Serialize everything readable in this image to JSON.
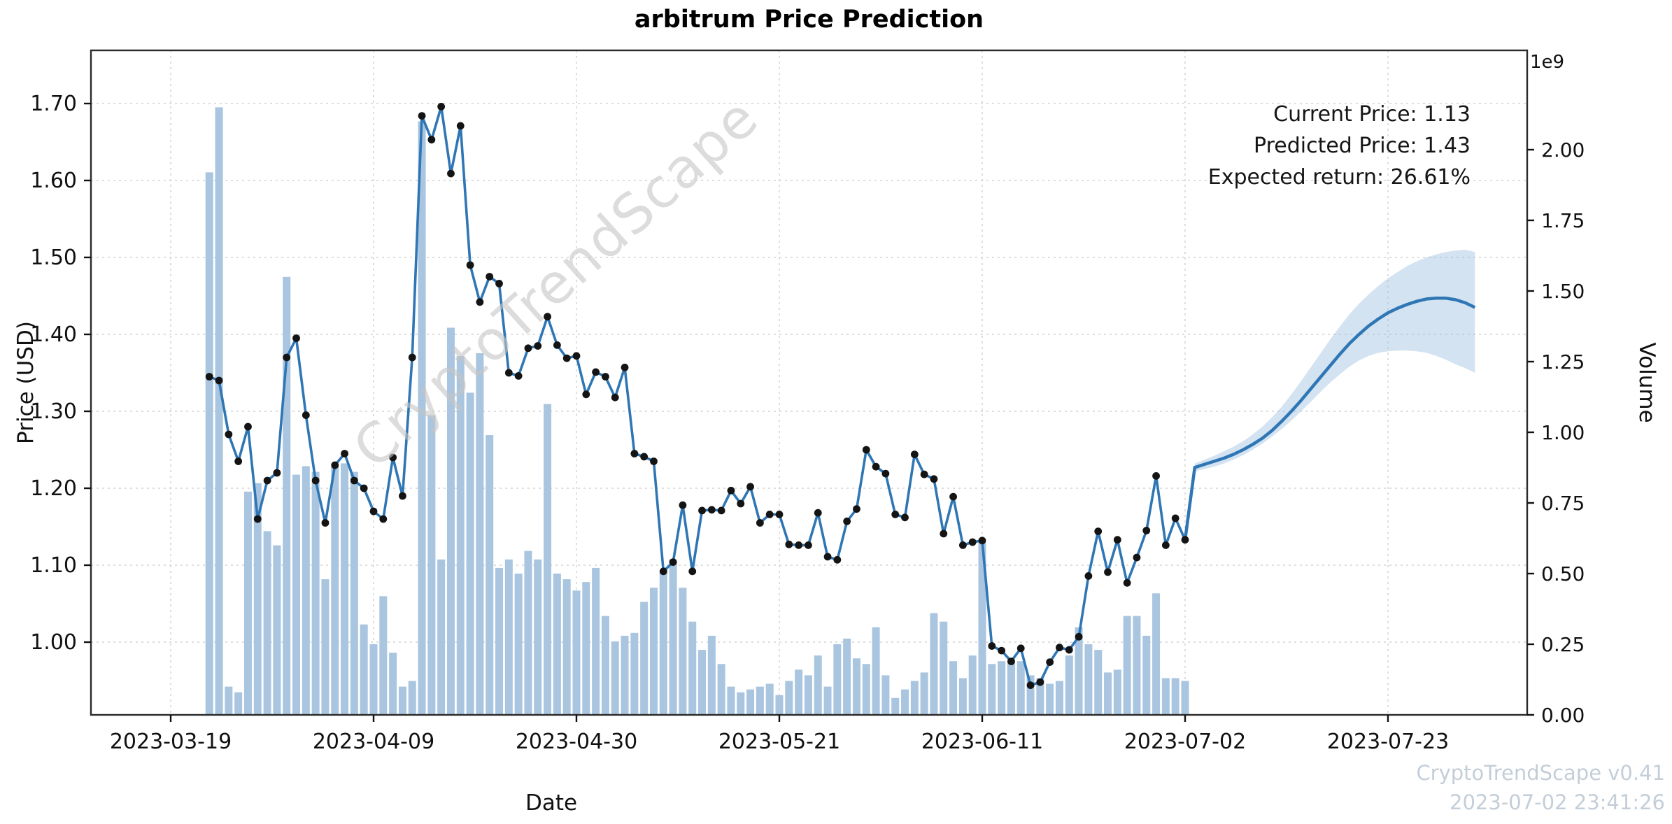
{
  "title": "arbitrum Price Prediction",
  "axes": {
    "x_label": "Date",
    "y_left_label": "Price (USD)",
    "y_right_label": "Volume",
    "volume_exponent_label": "1e9"
  },
  "annotation": {
    "current": "Current Price: 1.13",
    "predicted": "Predicted Price: 1.43",
    "expected": "Expected return: 26.61%"
  },
  "watermark": "CryptoTrendScape",
  "credits": {
    "line1": "CryptoTrendScape v0.41",
    "line2": "2023-07-02 23:41:26"
  },
  "colors": {
    "line": "#2f76b5",
    "marker": "#141414",
    "volume_bar": "#a9c5df",
    "band_fill": "#9dc2e0",
    "grid": "#c9c9c9",
    "frame": "#2a2a2a",
    "credits_text": "#c4ced8",
    "watermark_text": "#c6c6c6"
  },
  "chart_data": {
    "type": "line+bar+band",
    "title": "arbitrum Price Prediction",
    "xlabel": "Date",
    "ylabel_left": "Price (USD)",
    "ylabel_right": "Volume",
    "grid": true,
    "legend_position": "none",
    "x_ticks": [
      "2023-03-19",
      "2023-04-09",
      "2023-04-30",
      "2023-05-21",
      "2023-06-11",
      "2023-07-02",
      "2023-07-23"
    ],
    "price_ticks": [
      "1.00",
      "1.10",
      "1.20",
      "1.30",
      "1.40",
      "1.50",
      "1.60",
      "1.70"
    ],
    "volume_ticks": [
      "0.00",
      "0.25",
      "0.50",
      "0.75",
      "1.00",
      "1.25",
      "1.50",
      "1.75",
      "2.00"
    ],
    "price_ylim": [
      0.905,
      1.77
    ],
    "volume_ylim_e9": [
      0,
      2.35
    ],
    "history": {
      "dates": [
        "2023-03-23",
        "2023-03-24",
        "2023-03-25",
        "2023-03-26",
        "2023-03-27",
        "2023-03-28",
        "2023-03-29",
        "2023-03-30",
        "2023-03-31",
        "2023-04-01",
        "2023-04-02",
        "2023-04-03",
        "2023-04-04",
        "2023-04-05",
        "2023-04-06",
        "2023-04-07",
        "2023-04-08",
        "2023-04-09",
        "2023-04-10",
        "2023-04-11",
        "2023-04-12",
        "2023-04-13",
        "2023-04-14",
        "2023-04-15",
        "2023-04-16",
        "2023-04-17",
        "2023-04-18",
        "2023-04-19",
        "2023-04-20",
        "2023-04-21",
        "2023-04-22",
        "2023-04-23",
        "2023-04-24",
        "2023-04-25",
        "2023-04-26",
        "2023-04-27",
        "2023-04-28",
        "2023-04-29",
        "2023-04-30",
        "2023-05-01",
        "2023-05-02",
        "2023-05-03",
        "2023-05-04",
        "2023-05-05",
        "2023-05-06",
        "2023-05-07",
        "2023-05-08",
        "2023-05-09",
        "2023-05-10",
        "2023-05-11",
        "2023-05-12",
        "2023-05-13",
        "2023-05-14",
        "2023-05-15",
        "2023-05-16",
        "2023-05-17",
        "2023-05-18",
        "2023-05-19",
        "2023-05-20",
        "2023-05-21",
        "2023-05-22",
        "2023-05-23",
        "2023-05-24",
        "2023-05-25",
        "2023-05-26",
        "2023-05-27",
        "2023-05-28",
        "2023-05-29",
        "2023-05-30",
        "2023-05-31",
        "2023-06-01",
        "2023-06-02",
        "2023-06-03",
        "2023-06-04",
        "2023-06-05",
        "2023-06-06",
        "2023-06-07",
        "2023-06-08",
        "2023-06-09",
        "2023-06-10",
        "2023-06-11",
        "2023-06-12",
        "2023-06-13",
        "2023-06-14",
        "2023-06-15",
        "2023-06-16",
        "2023-06-17",
        "2023-06-18",
        "2023-06-19",
        "2023-06-20",
        "2023-06-21",
        "2023-06-22",
        "2023-06-23",
        "2023-06-24",
        "2023-06-25",
        "2023-06-26",
        "2023-06-27",
        "2023-06-28",
        "2023-06-29",
        "2023-06-30",
        "2023-07-01",
        "2023-07-02"
      ],
      "price_usd": [
        1.345,
        1.34,
        1.27,
        1.235,
        1.28,
        1.16,
        1.21,
        1.22,
        1.37,
        1.395,
        1.295,
        1.21,
        1.155,
        1.23,
        1.245,
        1.21,
        1.2,
        1.17,
        1.16,
        1.24,
        1.19,
        1.37,
        1.684,
        1.653,
        1.696,
        1.609,
        1.671,
        1.49,
        1.442,
        1.475,
        1.466,
        1.35,
        1.346,
        1.382,
        1.385,
        1.423,
        1.386,
        1.369,
        1.372,
        1.322,
        1.351,
        1.345,
        1.318,
        1.357,
        1.245,
        1.241,
        1.235,
        1.092,
        1.104,
        1.178,
        1.092,
        1.171,
        1.172,
        1.171,
        1.197,
        1.18,
        1.202,
        1.155,
        1.166,
        1.166,
        1.127,
        1.126,
        1.126,
        1.168,
        1.111,
        1.107,
        1.157,
        1.173,
        1.25,
        1.228,
        1.219,
        1.166,
        1.162,
        1.244,
        1.218,
        1.212,
        1.141,
        1.189,
        1.126,
        1.13,
        1.132,
        0.995,
        0.989,
        0.975,
        0.992,
        0.944,
        0.948,
        0.974,
        0.993,
        0.99,
        1.007,
        1.086,
        1.144,
        1.091,
        1.133,
        1.077,
        1.11,
        1.145,
        1.216,
        1.126,
        1.161,
        1.133
      ],
      "volume_e9": [
        1.92,
        2.15,
        0.1,
        0.08,
        0.79,
        0.82,
        0.65,
        0.6,
        1.55,
        0.85,
        0.88,
        0.86,
        0.48,
        0.88,
        0.89,
        0.86,
        0.32,
        0.25,
        0.42,
        0.22,
        0.1,
        0.12,
        2.1,
        1.06,
        0.55,
        1.37,
        1.27,
        1.14,
        1.28,
        0.99,
        0.52,
        0.55,
        0.5,
        0.58,
        0.55,
        1.1,
        0.5,
        0.48,
        0.44,
        0.47,
        0.52,
        0.35,
        0.26,
        0.28,
        0.29,
        0.4,
        0.45,
        0.51,
        0.55,
        0.45,
        0.33,
        0.23,
        0.28,
        0.18,
        0.1,
        0.08,
        0.09,
        0.1,
        0.11,
        0.07,
        0.12,
        0.16,
        0.14,
        0.21,
        0.1,
        0.25,
        0.27,
        0.2,
        0.18,
        0.31,
        0.14,
        0.06,
        0.09,
        0.12,
        0.15,
        0.36,
        0.33,
        0.19,
        0.13,
        0.21,
        0.61,
        0.18,
        0.19,
        0.19,
        0.19,
        0.14,
        0.13,
        0.11,
        0.12,
        0.21,
        0.31,
        0.25,
        0.23,
        0.15,
        0.16,
        0.35,
        0.35,
        0.28,
        0.43,
        0.13,
        0.13,
        0.12
      ]
    },
    "forecast": {
      "dates": [
        "2023-07-02",
        "2023-07-03",
        "2023-07-04",
        "2023-07-05",
        "2023-07-06",
        "2023-07-07",
        "2023-07-08",
        "2023-07-09",
        "2023-07-10",
        "2023-07-11",
        "2023-07-12",
        "2023-07-13",
        "2023-07-14",
        "2023-07-15",
        "2023-07-16",
        "2023-07-17",
        "2023-07-18",
        "2023-07-19",
        "2023-07-20",
        "2023-07-21",
        "2023-07-22",
        "2023-07-23",
        "2023-07-24",
        "2023-07-25",
        "2023-07-26",
        "2023-07-27",
        "2023-07-28",
        "2023-07-29",
        "2023-07-30",
        "2023-07-31",
        "2023-08-01"
      ],
      "predicted": [
        1.133,
        1.227,
        1.231,
        1.235,
        1.239,
        1.244,
        1.25,
        1.257,
        1.265,
        1.275,
        1.287,
        1.3,
        1.314,
        1.329,
        1.344,
        1.359,
        1.374,
        1.388,
        1.4,
        1.411,
        1.42,
        1.428,
        1.434,
        1.439,
        1.443,
        1.446,
        1.447,
        1.447,
        1.445,
        1.441,
        1.435
      ],
      "band_upper": [
        1.133,
        1.232,
        1.237,
        1.242,
        1.248,
        1.254,
        1.261,
        1.27,
        1.28,
        1.292,
        1.306,
        1.322,
        1.339,
        1.357,
        1.375,
        1.393,
        1.41,
        1.426,
        1.44,
        1.452,
        1.463,
        1.473,
        1.481,
        1.489,
        1.495,
        1.5,
        1.504,
        1.507,
        1.509,
        1.51,
        1.507
      ],
      "band_lower": [
        1.133,
        1.222,
        1.225,
        1.228,
        1.232,
        1.237,
        1.243,
        1.25,
        1.258,
        1.267,
        1.277,
        1.288,
        1.3,
        1.312,
        1.325,
        1.337,
        1.348,
        1.358,
        1.366,
        1.372,
        1.376,
        1.378,
        1.379,
        1.379,
        1.378,
        1.376,
        1.372,
        1.367,
        1.361,
        1.356,
        1.35
      ]
    },
    "stats": {
      "current_price": 1.13,
      "predicted_price": 1.43,
      "expected_return_pct": 26.61
    }
  }
}
